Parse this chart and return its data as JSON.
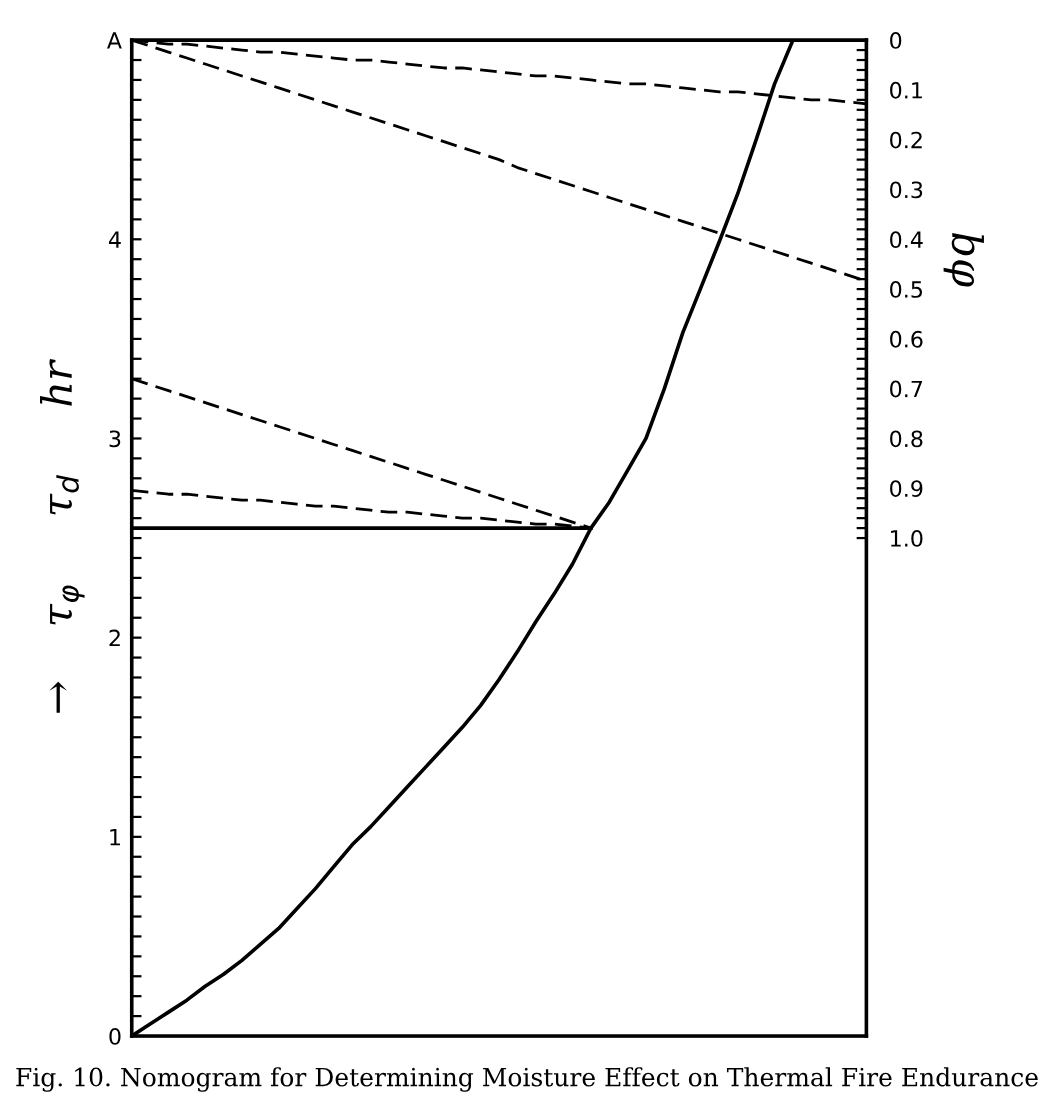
{
  "chart_data": {
    "type": "line",
    "ylabel": "→    τ$_{φ}$     τ$_{d}$     hr",
    "y2label": "bφ",
    "annotations": [
      "Fig. 10. Nomogram for Determining Moisture Effect on Thermal Fire Endurance"
    ],
    "categories": [
      null,
      null,
      null,
      null,
      null,
      null,
      null,
      null,
      null,
      null,
      null,
      null,
      null,
      null,
      null,
      null,
      null,
      null,
      null,
      null,
      null,
      null,
      null,
      null,
      null,
      null,
      null,
      null,
      null,
      null,
      null,
      null,
      null,
      null,
      null,
      null,
      null,
      null,
      null,
      null,
      null
    ],
    "ylim": [
      0,
      5
    ],
    "yticks": [
      0,
      {
        "value": 0.1,
        "label": null
      },
      {
        "value": 0.2,
        "label": null
      },
      {
        "value": 0.3,
        "label": null
      },
      {
        "value": 0.4,
        "label": null
      },
      {
        "value": 0.5,
        "label": null
      },
      {
        "value": 0.6,
        "label": null
      },
      {
        "value": 0.7,
        "label": null
      },
      {
        "value": 0.8,
        "label": null
      },
      {
        "value": 0.9,
        "label": null
      },
      1,
      {
        "value": 1.1,
        "label": null
      },
      {
        "value": 1.2,
        "label": null
      },
      {
        "value": 1.3,
        "label": null
      },
      {
        "value": 1.4,
        "label": null
      },
      {
        "value": 1.5,
        "label": null
      },
      {
        "value": 1.6,
        "label": null
      },
      {
        "value": 1.7,
        "label": null
      },
      {
        "value": 1.8,
        "label": null
      },
      {
        "value": 1.9,
        "label": null
      },
      2,
      {
        "value": 2.1,
        "label": null
      },
      {
        "value": 2.2,
        "label": null
      },
      {
        "value": 2.3,
        "label": null
      },
      {
        "value": 2.4,
        "label": null
      },
      {
        "value": 2.5,
        "label": null
      },
      {
        "value": 2.6,
        "label": null
      },
      {
        "value": 2.7,
        "label": null
      },
      {
        "value": 2.8,
        "label": null
      },
      {
        "value": 2.9,
        "label": null
      },
      3,
      {
        "value": 3.1,
        "label": null
      },
      {
        "value": 3.2,
        "label": null
      },
      {
        "value": 3.3,
        "label": null
      },
      {
        "value": 3.4,
        "label": null
      },
      {
        "value": 3.5,
        "label": null
      },
      {
        "value": 3.6,
        "label": null
      },
      {
        "value": 3.7,
        "label": null
      },
      {
        "value": 3.8,
        "label": null
      },
      {
        "value": 3.9,
        "label": null
      },
      4,
      {
        "value": 4.1,
        "label": null
      },
      {
        "value": 4.2,
        "label": null
      },
      {
        "value": 4.3,
        "label": null
      },
      {
        "value": 4.4,
        "label": null
      },
      {
        "value": 4.5,
        "label": null
      },
      {
        "value": 4.6,
        "label": null
      },
      {
        "value": 4.7,
        "label": null
      },
      {
        "value": 4.8,
        "label": null
      },
      {
        "value": 4.9,
        "label": null
      },
      {
        "value": 5,
        "label": "A"
      }
    ],
    "y2lim": [
      2.0,
      0
    ],
    "y2ticks": [
      {
        "value": 0,
        "label": "0"
      },
      {
        "value": 0.02,
        "label": null
      },
      {
        "value": 0.04,
        "label": null
      },
      {
        "value": 0.06,
        "label": null
      },
      {
        "value": 0.08,
        "label": null
      },
      0.1,
      {
        "value": 0.12,
        "label": null
      },
      {
        "value": 0.14,
        "label": null
      },
      {
        "value": 0.16,
        "label": null
      },
      {
        "value": 0.18,
        "label": null
      },
      0.2,
      {
        "value": 0.22,
        "label": null
      },
      {
        "value": 0.24,
        "label": null
      },
      {
        "value": 0.26,
        "label": null
      },
      {
        "value": 0.28,
        "label": null
      },
      0.3,
      {
        "value": 0.32,
        "label": null
      },
      {
        "value": 0.34,
        "label": null
      },
      {
        "value": 0.36,
        "label": null
      },
      {
        "value": 0.38,
        "label": null
      },
      0.4,
      {
        "value": 0.42,
        "label": null
      },
      {
        "value": 0.44,
        "label": null
      },
      {
        "value": 0.46,
        "label": null
      },
      {
        "value": 0.48,
        "label": null
      },
      0.5,
      {
        "value": 0.52,
        "label": null
      },
      {
        "value": 0.54,
        "label": null
      },
      {
        "value": 0.56,
        "label": null
      },
      {
        "value": 0.58,
        "label": null
      },
      0.6,
      {
        "value": 0.62,
        "label": null
      },
      {
        "value": 0.64,
        "label": null
      },
      {
        "value": 0.66,
        "label": null
      },
      {
        "value": 0.68,
        "label": null
      },
      0.7,
      {
        "value": 0.72,
        "label": null
      },
      {
        "value": 0.74,
        "label": null
      },
      {
        "value": 0.76,
        "label": null
      },
      {
        "value": 0.78,
        "label": null
      },
      0.8,
      {
        "value": 0.82,
        "label": null
      },
      {
        "value": 0.84,
        "label": null
      },
      {
        "value": 0.86,
        "label": null
      },
      {
        "value": 0.88,
        "label": null
      },
      0.9,
      {
        "value": 0.92,
        "label": null
      },
      {
        "value": 0.94,
        "label": null
      },
      {
        "value": 0.96,
        "label": null
      },
      {
        "value": 0.98,
        "label": null
      },
      {
        "value": 1.0,
        "label": "1.0"
      }
    ],
    "series": [
      {
        "color": "#000000",
        "line_style": "solid",
        "values": [
          0,
          0.06,
          0.12,
          0.18,
          0.25,
          0.31,
          0.38,
          0.46,
          0.54,
          0.64,
          0.74,
          0.85,
          0.96,
          1.05,
          1.15,
          1.25,
          1.35,
          1.45,
          1.55,
          1.66,
          1.79,
          1.93,
          2.08,
          2.22,
          2.37,
          2.55,
          2.68,
          2.84,
          3.0,
          3.25,
          3.53,
          3.76,
          3.99,
          4.23,
          4.5,
          4.78,
          5.0,
          null,
          null,
          null,
          null
        ]
      },
      {
        "color": "#000000",
        "line_style": "dashed",
        "values": [
          5.0,
          4.99,
          4.98,
          4.98,
          4.97,
          4.96,
          4.95,
          4.94,
          4.94,
          4.93,
          4.92,
          4.91,
          4.9,
          4.9,
          4.89,
          4.88,
          4.87,
          4.86,
          4.86,
          4.85,
          4.84,
          4.83,
          4.82,
          4.82,
          4.81,
          4.8,
          4.79,
          4.78,
          4.78,
          4.77,
          4.76,
          4.75,
          4.74,
          4.74,
          4.73,
          4.72,
          4.71,
          4.7,
          4.7,
          4.69,
          4.68
        ]
      },
      {
        "color": "#000000",
        "line_style": "dashed",
        "values": [
          5.0,
          4.97,
          4.94,
          4.91,
          4.88,
          4.85,
          4.82,
          4.79,
          4.76,
          4.73,
          4.7,
          4.67,
          4.64,
          4.61,
          4.58,
          4.55,
          4.52,
          4.49,
          4.46,
          4.43,
          4.4,
          4.36,
          4.33,
          4.3,
          4.27,
          4.24,
          4.21,
          4.18,
          4.15,
          4.12,
          4.09,
          4.06,
          4.03,
          4.0,
          3.97,
          3.94,
          3.91,
          3.88,
          3.85,
          3.82,
          3.79
        ]
      },
      {
        "color": "#000000",
        "line_style": "dashed",
        "values": [
          3.3,
          3.27,
          3.24,
          3.21,
          3.18,
          3.15,
          3.12,
          3.09,
          3.06,
          3.03,
          3.0,
          2.97,
          2.94,
          2.91,
          2.88,
          2.85,
          2.82,
          2.79,
          2.76,
          2.73,
          2.7,
          2.67,
          2.64,
          2.61,
          2.58,
          2.55,
          null,
          null,
          null,
          null,
          null,
          null,
          null,
          null,
          null,
          null,
          null,
          null,
          null,
          null,
          null
        ]
      },
      {
        "color": "#000000",
        "line_style": "dashed",
        "values": [
          2.74,
          2.73,
          2.72,
          2.72,
          2.71,
          2.7,
          2.69,
          2.69,
          2.68,
          2.67,
          2.66,
          2.66,
          2.65,
          2.64,
          2.63,
          2.63,
          2.62,
          2.61,
          2.6,
          2.6,
          2.59,
          2.58,
          2.57,
          2.57,
          2.56,
          2.55,
          null,
          null,
          null,
          null,
          null,
          null,
          null,
          null,
          null,
          null,
          null,
          null,
          null,
          null,
          null
        ]
      },
      {
        "color": "#000000",
        "line_style": "solid",
        "values": [
          2.55,
          2.55,
          2.55,
          2.55,
          2.55,
          2.55,
          2.55,
          2.55,
          2.55,
          2.55,
          2.55,
          2.55,
          2.55,
          2.55,
          2.55,
          2.55,
          2.55,
          2.55,
          2.55,
          2.55,
          2.55,
          2.55,
          2.55,
          2.55,
          2.55,
          2.55,
          null,
          null,
          null,
          null,
          null,
          null,
          null,
          null,
          null,
          null,
          null,
          null,
          null,
          null,
          null
        ]
      }
    ],
    "marker": "none"
  }
}
